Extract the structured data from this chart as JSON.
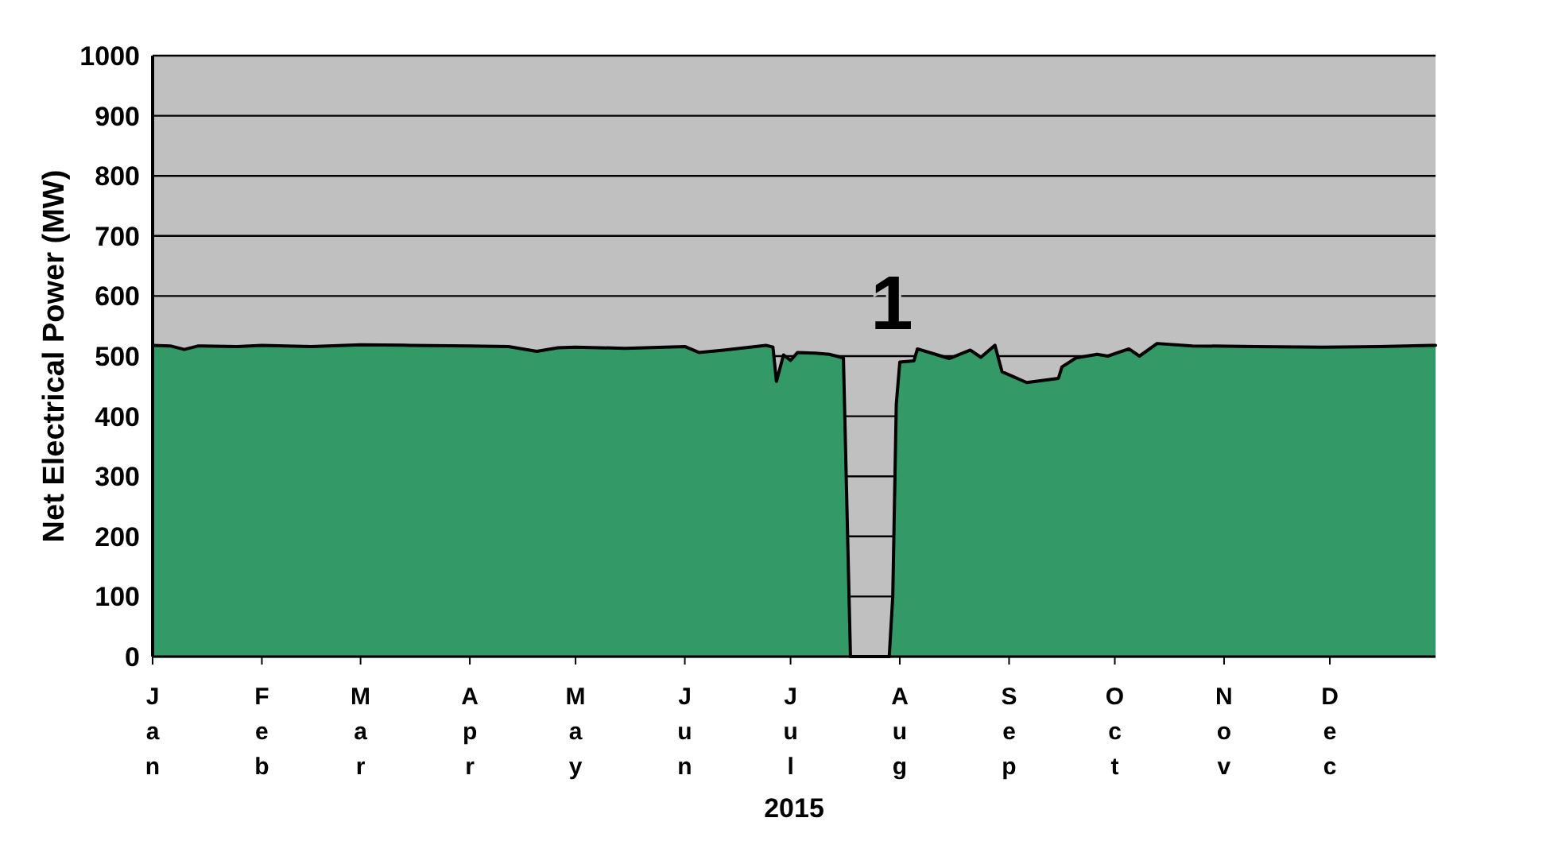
{
  "chart_data": {
    "type": "area",
    "xlabel": "2015",
    "ylabel": "Net Electrical Power (MW)",
    "x": [
      "2015-01-01",
      "2015-01-06",
      "2015-01-10",
      "2015-01-14",
      "2015-01-25",
      "2015-02-01",
      "2015-02-15",
      "2015-03-01",
      "2015-03-15",
      "2015-04-01",
      "2015-04-12",
      "2015-04-20",
      "2015-04-26",
      "2015-05-01",
      "2015-05-15",
      "2015-06-01",
      "2015-06-05",
      "2015-06-12",
      "2015-06-24",
      "2015-06-26",
      "2015-06-27",
      "2015-06-29",
      "2015-07-01",
      "2015-07-03",
      "2015-07-08",
      "2015-07-12",
      "2015-07-16",
      "2015-07-18",
      "2015-07-29",
      "2015-07-30",
      "2015-07-31",
      "2015-08-01",
      "2015-08-05",
      "2015-08-06",
      "2015-08-10",
      "2015-08-15",
      "2015-08-21",
      "2015-08-24",
      "2015-08-28",
      "2015-08-30",
      "2015-09-06",
      "2015-09-15",
      "2015-09-16",
      "2015-09-20",
      "2015-09-26",
      "2015-09-29",
      "2015-10-05",
      "2015-10-08",
      "2015-10-13",
      "2015-10-23",
      "2015-11-10",
      "2015-11-29",
      "2015-12-15",
      "2015-12-30",
      "2015-12-31"
    ],
    "series": [
      {
        "color": "#339966",
        "values": [
          518,
          517,
          511,
          517,
          516,
          518,
          516,
          519,
          518,
          517,
          516,
          508,
          514,
          515,
          513,
          516,
          506,
          510,
          518,
          515,
          458,
          502,
          493,
          506,
          505,
          503,
          497,
          0,
          0,
          100,
          420,
          490,
          492,
          512,
          505,
          496,
          510,
          498,
          518,
          474,
          456,
          463,
          482,
          497,
          503,
          500,
          512,
          500,
          521,
          517,
          516,
          515,
          516,
          518,
          518
        ]
      }
    ],
    "xlim": [
      "2015-01-01",
      "2015-12-31"
    ],
    "xticks": [
      {
        "value": "2015-01-01",
        "label": "Jan"
      },
      {
        "value": "2015-02-01",
        "label": "Feb"
      },
      {
        "value": "2015-03-01",
        "label": "Mar"
      },
      {
        "value": "2015-04-01",
        "label": "Apr"
      },
      {
        "value": "2015-05-01",
        "label": "May"
      },
      {
        "value": "2015-06-01",
        "label": "Jun"
      },
      {
        "value": "2015-07-01",
        "label": "Jul"
      },
      {
        "value": "2015-08-01",
        "label": "Aug"
      },
      {
        "value": "2015-09-01",
        "label": "Sep"
      },
      {
        "value": "2015-10-01",
        "label": "Oct"
      },
      {
        "value": "2015-11-01",
        "label": "Nov"
      },
      {
        "value": "2015-12-01",
        "label": "Dec"
      }
    ],
    "ylim": [
      0,
      1000
    ],
    "yticks": [
      0,
      100,
      200,
      300,
      400,
      500,
      600,
      700,
      800,
      900,
      1000
    ],
    "grid": "y",
    "annotations": [
      "1"
    ]
  }
}
